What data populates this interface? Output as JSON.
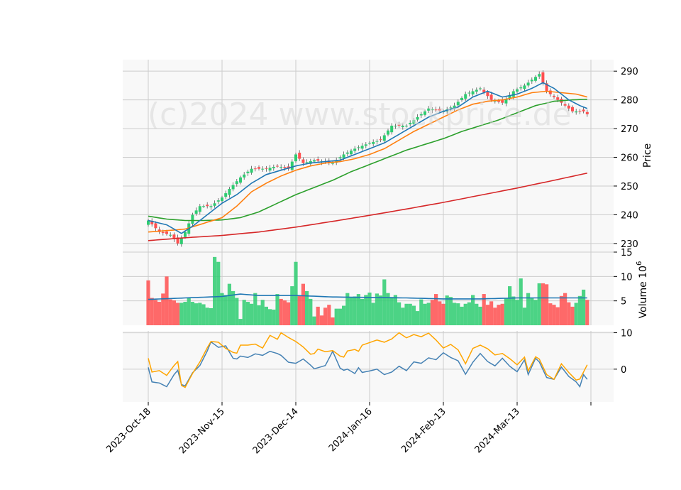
{
  "chart_data": {
    "type": "candlestick",
    "watermark": "(c)2024 www.stockprice.de",
    "colors": {
      "up": "#2ecc71",
      "down": "#ff5050",
      "sma10": "#1f77b4",
      "sma20": "#ff7f0e",
      "sma50": "#2ca02c",
      "sma200": "#d62728",
      "volume_ma": "#1f77b4",
      "macd": "#4682b4",
      "signal": "#ffa500",
      "grid": "#cccccc",
      "panel_bg": "#f8f8f8"
    },
    "x_tick_labels": [
      "2023-Oct-18",
      "2023-Nov-15",
      "2023-Dec-14",
      "2024-Jan-16",
      "2024-Feb-13",
      "2024-Mar-13"
    ],
    "x_tick_indices": [
      0,
      20,
      40,
      60,
      80,
      100
    ],
    "n_sessions": 120,
    "price_panel": {
      "ylabel": "Price",
      "ylim": [
        227,
        294
      ],
      "yticks": [
        230,
        240,
        250,
        260,
        270,
        280,
        290
      ],
      "close_anchors": [
        [
          0,
          238
        ],
        [
          3,
          234
        ],
        [
          6,
          233
        ],
        [
          8,
          230
        ],
        [
          10,
          234
        ],
        [
          12,
          240
        ],
        [
          14,
          243
        ],
        [
          17,
          243
        ],
        [
          20,
          246
        ],
        [
          22,
          249
        ],
        [
          25,
          253
        ],
        [
          28,
          256
        ],
        [
          32,
          256
        ],
        [
          35,
          257
        ],
        [
          38,
          256
        ],
        [
          40,
          261
        ],
        [
          42,
          258
        ],
        [
          45,
          259
        ],
        [
          50,
          258
        ],
        [
          53,
          261
        ],
        [
          56,
          263
        ],
        [
          60,
          265
        ],
        [
          63,
          266
        ],
        [
          66,
          271
        ],
        [
          70,
          271
        ],
        [
          73,
          274
        ],
        [
          76,
          277
        ],
        [
          80,
          276
        ],
        [
          83,
          278
        ],
        [
          86,
          282
        ],
        [
          90,
          284
        ],
        [
          93,
          280
        ],
        [
          96,
          279
        ],
        [
          99,
          283
        ],
        [
          102,
          285
        ],
        [
          104,
          287
        ],
        [
          106,
          289
        ],
        [
          108,
          283
        ],
        [
          112,
          279
        ],
        [
          115,
          276
        ],
        [
          118,
          276
        ],
        [
          119,
          275
        ]
      ],
      "sma10_anchors": [
        [
          0,
          238
        ],
        [
          5,
          236.5
        ],
        [
          9,
          233.5
        ],
        [
          12,
          236
        ],
        [
          16,
          240
        ],
        [
          20,
          244
        ],
        [
          24,
          247
        ],
        [
          28,
          251
        ],
        [
          32,
          254
        ],
        [
          36,
          255.5
        ],
        [
          40,
          257
        ],
        [
          44,
          258
        ],
        [
          48,
          258.5
        ],
        [
          52,
          259
        ],
        [
          56,
          261
        ],
        [
          60,
          263
        ],
        [
          64,
          265
        ],
        [
          68,
          268
        ],
        [
          72,
          271
        ],
        [
          76,
          274
        ],
        [
          80,
          276
        ],
        [
          84,
          277.5
        ],
        [
          88,
          281
        ],
        [
          92,
          283
        ],
        [
          96,
          281
        ],
        [
          100,
          282
        ],
        [
          104,
          284
        ],
        [
          107,
          286
        ],
        [
          110,
          284
        ],
        [
          114,
          280
        ],
        [
          117,
          278
        ],
        [
          119,
          277
        ]
      ],
      "sma20_anchors": [
        [
          0,
          234
        ],
        [
          5,
          234.5
        ],
        [
          10,
          235
        ],
        [
          15,
          237
        ],
        [
          20,
          239
        ],
        [
          24,
          243
        ],
        [
          28,
          248
        ],
        [
          32,
          251
        ],
        [
          36,
          253.5
        ],
        [
          40,
          255.5
        ],
        [
          44,
          257
        ],
        [
          48,
          258
        ],
        [
          52,
          258.5
        ],
        [
          56,
          259.5
        ],
        [
          60,
          261
        ],
        [
          64,
          263
        ],
        [
          68,
          266
        ],
        [
          72,
          269
        ],
        [
          76,
          271.5
        ],
        [
          80,
          274
        ],
        [
          84,
          276.5
        ],
        [
          88,
          278.5
        ],
        [
          92,
          279.5
        ],
        [
          96,
          280
        ],
        [
          100,
          281
        ],
        [
          104,
          282.5
        ],
        [
          108,
          283
        ],
        [
          112,
          282.5
        ],
        [
          116,
          282
        ],
        [
          119,
          281
        ]
      ],
      "sma50_anchors": [
        [
          0,
          239.5
        ],
        [
          5,
          238.5
        ],
        [
          10,
          238
        ],
        [
          15,
          238
        ],
        [
          20,
          238.2
        ],
        [
          25,
          239
        ],
        [
          30,
          241
        ],
        [
          35,
          244
        ],
        [
          40,
          247
        ],
        [
          45,
          249.5
        ],
        [
          50,
          252
        ],
        [
          55,
          255
        ],
        [
          60,
          257.5
        ],
        [
          65,
          260
        ],
        [
          70,
          262.5
        ],
        [
          75,
          264.5
        ],
        [
          80,
          266.5
        ],
        [
          85,
          269
        ],
        [
          90,
          271
        ],
        [
          95,
          273
        ],
        [
          100,
          275.5
        ],
        [
          105,
          278
        ],
        [
          110,
          279.5
        ],
        [
          115,
          280
        ],
        [
          119,
          280.2
        ]
      ],
      "sma200_anchors": [
        [
          0,
          231
        ],
        [
          10,
          232
        ],
        [
          20,
          232.8
        ],
        [
          30,
          234
        ],
        [
          40,
          235.7
        ],
        [
          50,
          237.7
        ],
        [
          60,
          239.8
        ],
        [
          70,
          242
        ],
        [
          80,
          244.3
        ],
        [
          90,
          246.8
        ],
        [
          100,
          249.3
        ],
        [
          110,
          252
        ],
        [
          119,
          254.5
        ]
      ]
    },
    "volume_panel": {
      "ylabel": "Volume  10",
      "ylabel_exp": "6",
      "ylim": [
        0,
        15
      ],
      "yticks": [
        5,
        10,
        15
      ],
      "values": [
        9.2,
        5.6,
        5.2,
        4.8,
        6.5,
        10.0,
        5.3,
        5.1,
        4.6,
        4.6,
        4.8,
        5.6,
        4.8,
        4.5,
        4.6,
        4.3,
        3.6,
        3.5,
        14.0,
        13.0,
        6.6,
        6.2,
        8.5,
        7.0,
        5.6,
        1.3,
        5.2,
        4.8,
        4.4,
        6.6,
        4.1,
        5.2,
        3.8,
        3.3,
        3.2,
        6.4,
        5.4,
        5.1,
        4.7,
        8.0,
        13.0,
        6.0,
        8.5,
        7.0,
        5.4,
        1.8,
        3.8,
        2.0,
        3.6,
        4.2,
        1.6,
        3.4,
        3.4,
        4.0,
        6.6,
        5.7,
        5.9,
        6.4,
        5.4,
        6.2,
        6.7,
        4.6,
        6.5,
        6.1,
        9.4,
        6.6,
        5.8,
        6.2,
        4.7,
        3.6,
        4.4,
        4.4,
        4.0,
        2.9,
        5.3,
        4.4,
        4.6,
        5.2,
        6.4,
        4.9,
        4.4,
        6.1,
        5.8,
        4.6,
        4.5,
        3.8,
        4.4,
        4.7,
        6.2,
        4.4,
        3.8,
        6.4,
        4.2,
        4.9,
        3.6,
        4.2,
        4.4,
        5.5,
        8.0,
        5.9,
        5.2,
        9.6,
        3.6,
        6.6,
        5.6,
        5.2,
        8.6,
        8.6,
        8.4,
        4.5,
        4.2,
        3.7,
        6.0,
        6.6,
        4.7,
        3.8,
        4.6,
        6.0,
        7.3,
        5.2
      ],
      "ma_anchors": [
        [
          0,
          5.3
        ],
        [
          10,
          5.6
        ],
        [
          20,
          5.9
        ],
        [
          25,
          6.4
        ],
        [
          30,
          6.1
        ],
        [
          40,
          6.1
        ],
        [
          50,
          5.8
        ],
        [
          60,
          5.7
        ],
        [
          70,
          5.6
        ],
        [
          80,
          5.4
        ],
        [
          90,
          5.4
        ],
        [
          100,
          5.6
        ],
        [
          110,
          5.6
        ],
        [
          119,
          5.6
        ]
      ]
    },
    "macd_panel": {
      "ylim": [
        -9,
        10.5
      ],
      "yticks": [
        0,
        10
      ],
      "macd_anchors": [
        [
          0,
          0.5
        ],
        [
          1,
          -3.5
        ],
        [
          3,
          -3.8
        ],
        [
          5,
          -4.8
        ],
        [
          7,
          -1.5
        ],
        [
          8,
          -0.3
        ],
        [
          9,
          -4.2
        ],
        [
          10,
          -4.6
        ],
        [
          12,
          -1.0
        ],
        [
          14,
          1.0
        ],
        [
          16,
          5.0
        ],
        [
          17,
          7.5
        ],
        [
          19,
          6.0
        ],
        [
          21,
          6.4
        ],
        [
          23,
          3.0
        ],
        [
          24,
          2.8
        ],
        [
          25,
          3.6
        ],
        [
          27,
          3.2
        ],
        [
          29,
          4.2
        ],
        [
          31,
          3.8
        ],
        [
          33,
          4.9
        ],
        [
          35,
          4.3
        ],
        [
          36,
          3.8
        ],
        [
          38,
          1.9
        ],
        [
          40,
          1.6
        ],
        [
          42,
          2.8
        ],
        [
          44,
          1.1
        ],
        [
          45,
          0.1
        ],
        [
          46,
          0.4
        ],
        [
          48,
          1.0
        ],
        [
          50,
          4.9
        ],
        [
          52,
          0.3
        ],
        [
          53,
          -0.3
        ],
        [
          54,
          0.0
        ],
        [
          56,
          -1.2
        ],
        [
          57,
          0.4
        ],
        [
          58,
          -0.9
        ],
        [
          60,
          -0.5
        ],
        [
          62,
          0.0
        ],
        [
          64,
          -1.5
        ],
        [
          66,
          -0.8
        ],
        [
          68,
          0.8
        ],
        [
          70,
          -0.4
        ],
        [
          72,
          2.0
        ],
        [
          74,
          1.6
        ],
        [
          76,
          3.1
        ],
        [
          78,
          2.6
        ],
        [
          80,
          4.5
        ],
        [
          82,
          3.2
        ],
        [
          84,
          2.3
        ],
        [
          86,
          -1.4
        ],
        [
          88,
          1.9
        ],
        [
          90,
          4.3
        ],
        [
          92,
          2.1
        ],
        [
          94,
          0.9
        ],
        [
          96,
          3.0
        ],
        [
          98,
          0.8
        ],
        [
          100,
          -0.7
        ],
        [
          102,
          2.6
        ],
        [
          103,
          -1.5
        ],
        [
          105,
          3.0
        ],
        [
          106,
          2.0
        ],
        [
          108,
          -2.3
        ],
        [
          110,
          -2.8
        ],
        [
          112,
          0.6
        ],
        [
          114,
          -2.0
        ],
        [
          116,
          -3.5
        ],
        [
          117,
          -4.8
        ],
        [
          118,
          -1.5
        ],
        [
          119,
          -2.8
        ]
      ],
      "signal_anchors": [
        [
          0,
          3.0
        ],
        [
          1,
          -0.8
        ],
        [
          3,
          -0.4
        ],
        [
          5,
          -1.7
        ],
        [
          7,
          1.0
        ],
        [
          8,
          2.1
        ],
        [
          9,
          -4.5
        ],
        [
          10,
          -5.0
        ],
        [
          12,
          -1.2
        ],
        [
          14,
          2.0
        ],
        [
          16,
          5.9
        ],
        [
          17,
          7.6
        ],
        [
          19,
          7.4
        ],
        [
          21,
          5.7
        ],
        [
          23,
          4.6
        ],
        [
          24,
          4.4
        ],
        [
          25,
          6.6
        ],
        [
          27,
          6.6
        ],
        [
          29,
          6.9
        ],
        [
          31,
          5.8
        ],
        [
          33,
          9.3
        ],
        [
          35,
          8.2
        ],
        [
          36,
          10.0
        ],
        [
          38,
          8.7
        ],
        [
          40,
          7.6
        ],
        [
          42,
          6.1
        ],
        [
          44,
          4.1
        ],
        [
          45,
          4.3
        ],
        [
          46,
          5.5
        ],
        [
          48,
          4.8
        ],
        [
          50,
          5.1
        ],
        [
          52,
          3.6
        ],
        [
          53,
          3.3
        ],
        [
          54,
          5.0
        ],
        [
          56,
          5.4
        ],
        [
          57,
          4.9
        ],
        [
          58,
          6.6
        ],
        [
          60,
          7.3
        ],
        [
          62,
          8.0
        ],
        [
          64,
          7.4
        ],
        [
          66,
          8.3
        ],
        [
          68,
          10.0
        ],
        [
          70,
          8.6
        ],
        [
          72,
          9.5
        ],
        [
          74,
          8.9
        ],
        [
          76,
          9.9
        ],
        [
          78,
          8.0
        ],
        [
          80,
          5.8
        ],
        [
          82,
          6.8
        ],
        [
          84,
          5.3
        ],
        [
          86,
          1.5
        ],
        [
          88,
          5.7
        ],
        [
          90,
          6.6
        ],
        [
          92,
          5.6
        ],
        [
          94,
          3.9
        ],
        [
          96,
          4.3
        ],
        [
          98,
          2.9
        ],
        [
          100,
          1.2
        ],
        [
          102,
          3.3
        ],
        [
          103,
          -0.5
        ],
        [
          105,
          3.4
        ],
        [
          106,
          2.8
        ],
        [
          108,
          -1.5
        ],
        [
          110,
          -2.8
        ],
        [
          112,
          1.5
        ],
        [
          114,
          -0.9
        ],
        [
          116,
          -3.0
        ],
        [
          117,
          -2.7
        ],
        [
          118,
          -0.8
        ],
        [
          119,
          1.2
        ]
      ]
    }
  }
}
